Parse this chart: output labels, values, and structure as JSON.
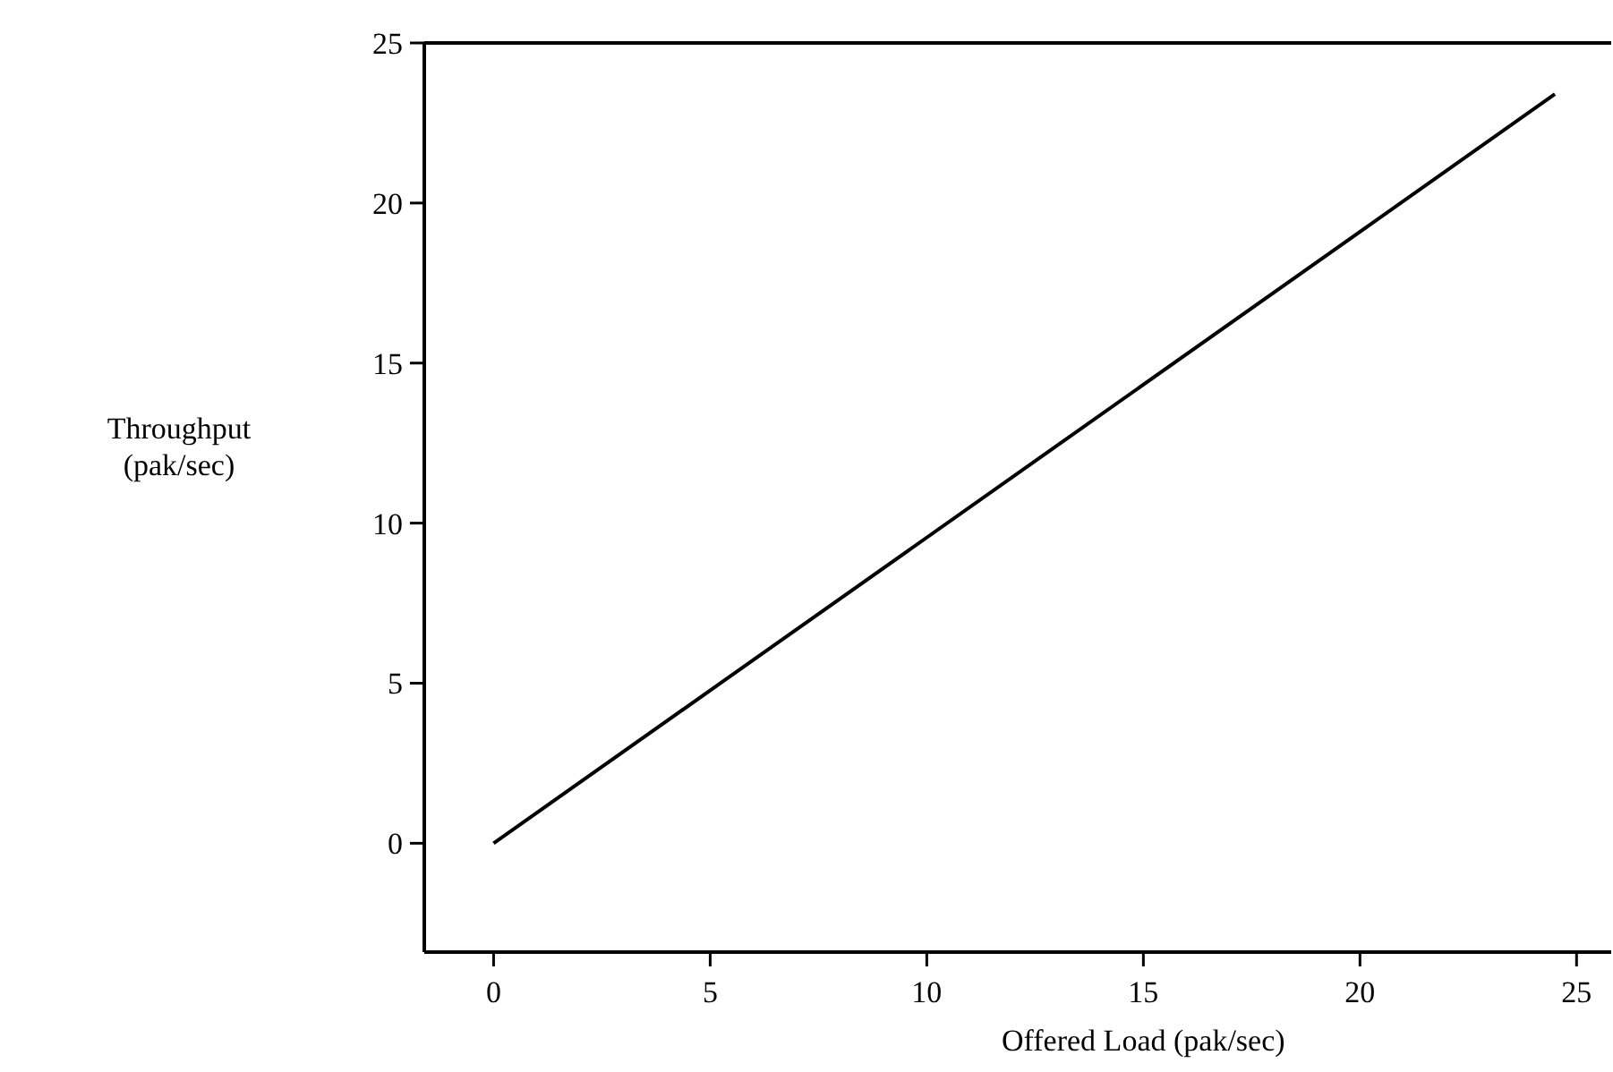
{
  "chart_data": {
    "type": "line",
    "xlabel": "Offered Load (pak/sec)",
    "ylabel": "Throughput\n(pak/sec)",
    "x": [
      0,
      24.5
    ],
    "series": [
      {
        "color": "#000000",
        "values": [
          0,
          23.4
        ]
      }
    ],
    "xlim": [
      -1.6,
      25.8
    ],
    "xticks": [
      0,
      5,
      10,
      15,
      20,
      25
    ],
    "ylim": [
      -3.4,
      25
    ],
    "yticks": [
      0,
      5,
      10,
      15,
      20,
      25
    ],
    "marker": "none",
    "line_style": "solid"
  }
}
